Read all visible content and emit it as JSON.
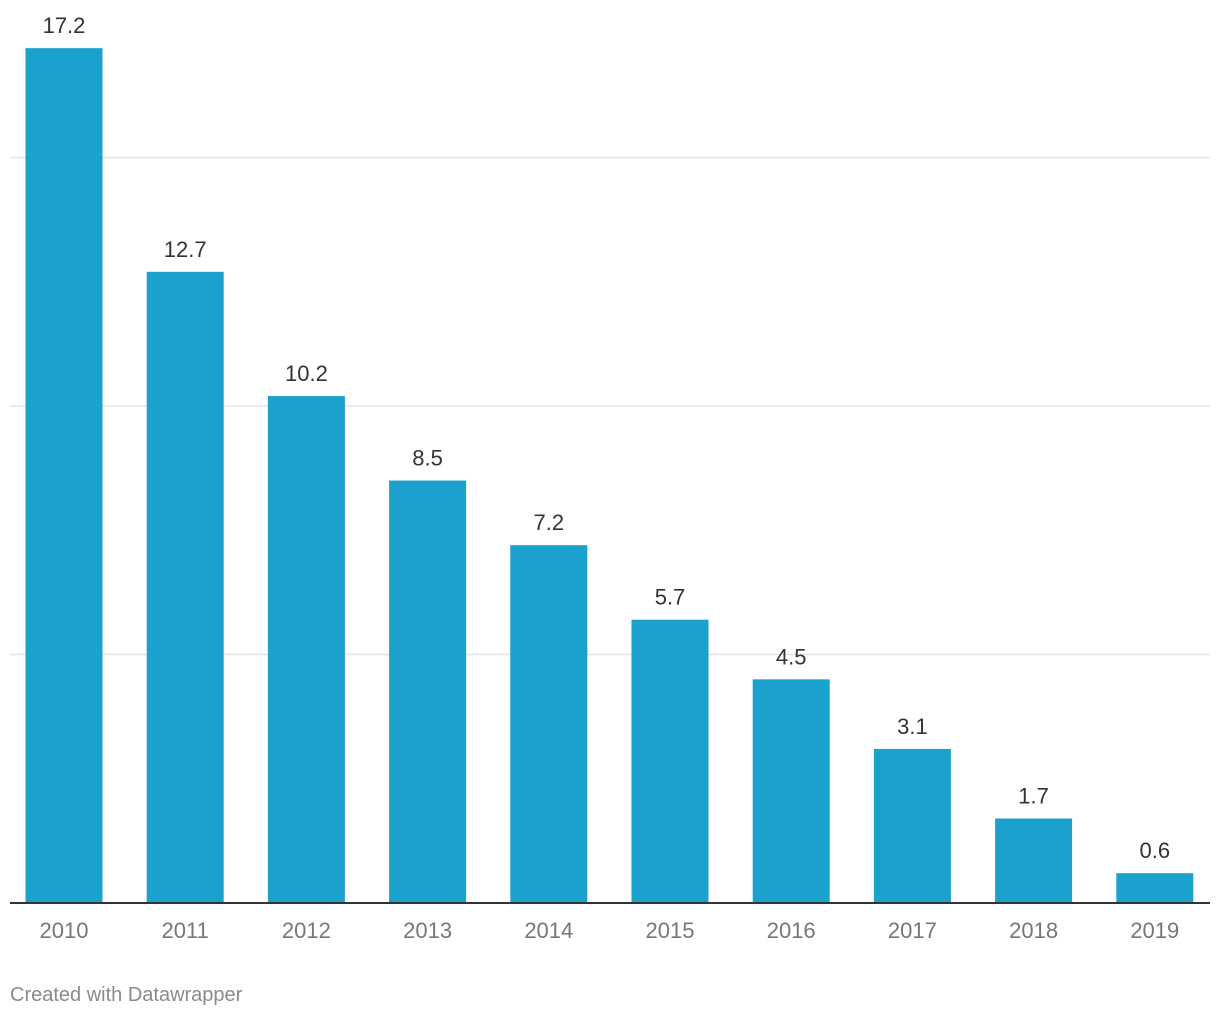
{
  "chart_data": {
    "type": "bar",
    "title": "",
    "xlabel": "",
    "ylabel": "",
    "categories": [
      "2010",
      "2011",
      "2012",
      "2013",
      "2014",
      "2015",
      "2016",
      "2017",
      "2018",
      "2019"
    ],
    "values": [
      17.2,
      12.7,
      10.2,
      8.5,
      7.2,
      5.7,
      4.5,
      3.1,
      1.7,
      0.6
    ],
    "value_labels": [
      "17.2",
      "12.7",
      "10.2",
      "8.5",
      "7.2",
      "5.7",
      "4.5",
      "3.1",
      "1.7",
      "0.6"
    ],
    "ylim": [
      0,
      17.2
    ],
    "gridlines": [
      5,
      10,
      15
    ],
    "grid": true,
    "legend": "none",
    "colors": {
      "bar": "#1aa1cd",
      "grid": "#e3e3e3",
      "axis": "#333333",
      "value_label": "#333333",
      "tick_label": "#777777"
    }
  },
  "footer": {
    "credit": "Created with Datawrapper"
  }
}
